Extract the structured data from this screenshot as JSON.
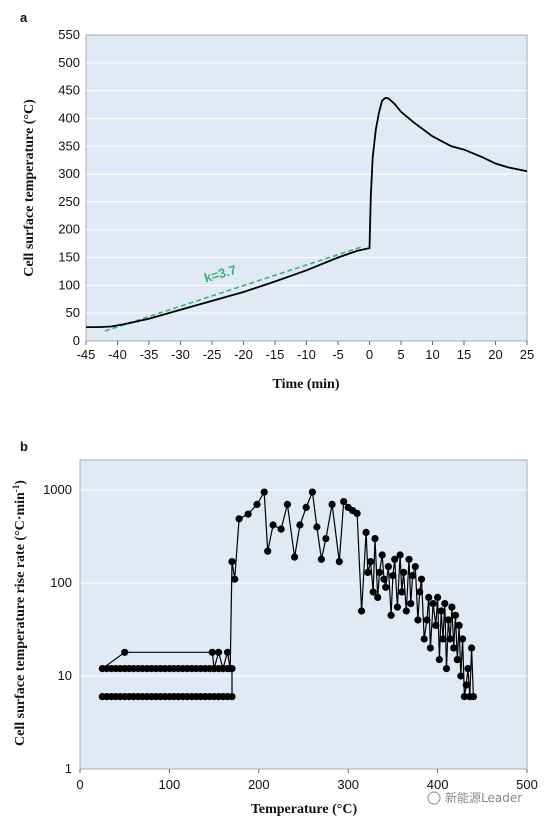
{
  "watermark": "新能源Leader",
  "chart_data": [
    {
      "panel": "a",
      "type": "line",
      "xlabel": "Time (min)",
      "ylabel": "Cell surface temperature (°C)",
      "xlim": [
        -45,
        25
      ],
      "ylim": [
        0,
        550
      ],
      "xticks": [
        -45,
        -40,
        -35,
        -30,
        -25,
        -20,
        -15,
        -10,
        -5,
        0,
        5,
        10,
        15,
        20,
        25
      ],
      "yticks": [
        0,
        50,
        100,
        150,
        200,
        250,
        300,
        350,
        400,
        450,
        500,
        550
      ],
      "grid": "y",
      "background": "#dfeaf5",
      "series": [
        {
          "color": "#000000",
          "x": [
            -45,
            -43,
            -41,
            -39,
            -37,
            -35,
            -30,
            -25,
            -20,
            -15,
            -10,
            -5,
            -2,
            0,
            0.2,
            0.5,
            1,
            1.5,
            2,
            2.5,
            3,
            4,
            5,
            7,
            10,
            13,
            15,
            18,
            20,
            22,
            25
          ],
          "y": [
            25,
            25,
            26,
            30,
            35,
            40,
            56,
            72,
            88,
            107,
            127,
            150,
            162,
            167,
            260,
            330,
            380,
            410,
            432,
            437,
            436,
            426,
            412,
            393,
            368,
            350,
            344,
            330,
            319,
            312,
            305
          ]
        }
      ],
      "fit_line": {
        "color": "#3cb371",
        "x": [
          -42,
          -1
        ],
        "y": [
          18,
          170
        ],
        "label": "k=3.7"
      }
    },
    {
      "panel": "b",
      "type": "scatter",
      "xlabel": "Temperature (°C)",
      "ylabel": "Cell surface temperature rise rate (°C·min",
      "ylabel_sup": "-1",
      "ylabel_close": ")",
      "xlim": [
        0,
        500
      ],
      "ylim": [
        1,
        1000
      ],
      "yscale": "log",
      "xticks": [
        0,
        100,
        200,
        300,
        400,
        500
      ],
      "yticks": [
        1,
        10,
        100,
        1000
      ],
      "yticklabels": [
        "1",
        "10",
        "100",
        "1000"
      ],
      "grid": "y",
      "background": "#dfeaf5",
      "series": [
        {
          "color": "#000000",
          "x": [
            25,
            30,
            35,
            40,
            45,
            50,
            55,
            60,
            65,
            70,
            75,
            80,
            85,
            90,
            95,
            100,
            105,
            110,
            115,
            120,
            125,
            130,
            135,
            140,
            145,
            150,
            155,
            160,
            165,
            170,
            170,
            165,
            160,
            155,
            150,
            145,
            140,
            135,
            130,
            125,
            120,
            115,
            110,
            105,
            100,
            95,
            90,
            85,
            80,
            75,
            70,
            65,
            60,
            55,
            50,
            45,
            40,
            35,
            30,
            25,
            50,
            148,
            150,
            155,
            160,
            165,
            168,
            170,
            173,
            178,
            188,
            198,
            206,
            210,
            216,
            225,
            232,
            240,
            246,
            253,
            260,
            265,
            270,
            275,
            282,
            290,
            295,
            300,
            305,
            310,
            315,
            320,
            322,
            325,
            328,
            330,
            333,
            335,
            338,
            340,
            342,
            345,
            348,
            350,
            352,
            355,
            358,
            360,
            362,
            365,
            368,
            370,
            372,
            375,
            378,
            380,
            382,
            385,
            388,
            390,
            392,
            395,
            398,
            400,
            402,
            404,
            406,
            408,
            410,
            412,
            414,
            416,
            418,
            420,
            422,
            424,
            426,
            428,
            430,
            432,
            434,
            436,
            438,
            440
          ],
          "y": [
            6,
            6,
            6,
            6,
            6,
            6,
            6,
            6,
            6,
            6,
            6,
            6,
            6,
            6,
            6,
            6,
            6,
            6,
            6,
            6,
            6,
            6,
            6,
            6,
            6,
            6,
            6,
            6,
            6,
            6,
            12,
            12,
            12,
            12,
            12,
            12,
            12,
            12,
            12,
            12,
            12,
            12,
            12,
            12,
            12,
            12,
            12,
            12,
            12,
            12,
            12,
            12,
            12,
            12,
            12,
            12,
            12,
            12,
            12,
            12,
            18,
            18,
            12,
            18,
            12,
            18,
            12,
            170,
            110,
            490,
            550,
            700,
            950,
            220,
            420,
            380,
            700,
            190,
            420,
            650,
            950,
            400,
            180,
            300,
            700,
            170,
            750,
            650,
            600,
            560,
            50,
            350,
            130,
            170,
            80,
            300,
            70,
            130,
            200,
            110,
            90,
            150,
            45,
            120,
            180,
            55,
            200,
            80,
            130,
            50,
            180,
            60,
            120,
            150,
            40,
            80,
            110,
            25,
            40,
            70,
            20,
            60,
            35,
            70,
            15,
            50,
            25,
            60,
            12,
            40,
            25,
            55,
            20,
            45,
            15,
            35,
            10,
            25,
            6,
            8,
            12,
            6,
            20,
            6
          ]
        }
      ]
    }
  ]
}
